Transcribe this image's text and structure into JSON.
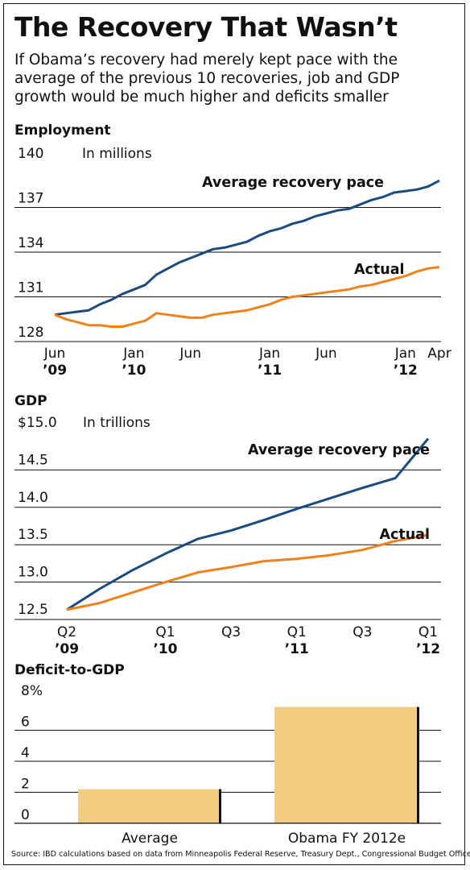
{
  "title": "The Recovery That Wasn’t",
  "subtitle": "If Obama’s recovery had merely kept pace with the average of the previous 10 recoveries, job and GDP growth would be much higher and deficits smaller",
  "source": "Source: IBD calculations based on data from Minneapolis Federal Reserve, Treasury Dept., Congressional Budget Office",
  "colors": {
    "average": "#1b4a7e",
    "actual": "#f0821e",
    "bar": "#f2cc80",
    "gridline": "#111111"
  },
  "chart_data": [
    {
      "type": "line",
      "title": "Employment",
      "unit_label": "In millions",
      "y_ticks": [
        "140",
        "137",
        "134",
        "131",
        "128"
      ],
      "ylim": [
        128,
        140
      ],
      "x_tick_labels": [
        {
          "month": "Jun",
          "year": "’09"
        },
        {
          "month": "Jan",
          "year": "’10"
        },
        {
          "month": "Jun",
          "year": ""
        },
        {
          "month": "Jan",
          "year": "’11"
        },
        {
          "month": "Jun",
          "year": ""
        },
        {
          "month": "Jan",
          "year": "’12"
        },
        {
          "month": "Apr",
          "year": ""
        }
      ],
      "x_start": "2009-06",
      "series": [
        {
          "name": "Average recovery pace",
          "x": [
            "2009-06",
            "2009-07",
            "2009-08",
            "2009-09",
            "2009-10",
            "2009-11",
            "2009-12",
            "2010-01",
            "2010-02",
            "2010-03",
            "2010-04",
            "2010-05",
            "2010-06",
            "2010-07",
            "2010-08",
            "2010-09",
            "2010-10",
            "2010-11",
            "2010-12",
            "2011-01",
            "2011-02",
            "2011-03",
            "2011-04",
            "2011-05",
            "2011-06",
            "2011-07",
            "2011-08",
            "2011-09",
            "2011-10",
            "2011-11",
            "2011-12",
            "2012-01",
            "2012-02",
            "2012-03",
            "2012-04"
          ],
          "values": [
            129.8,
            129.9,
            130.0,
            130.1,
            130.5,
            130.8,
            131.2,
            131.5,
            131.8,
            132.5,
            132.9,
            133.3,
            133.6,
            133.9,
            134.2,
            134.3,
            134.5,
            134.7,
            135.1,
            135.4,
            135.6,
            135.9,
            136.1,
            136.4,
            136.6,
            136.8,
            136.9,
            137.2,
            137.5,
            137.7,
            138.0,
            138.1,
            138.2,
            138.4,
            138.8
          ]
        },
        {
          "name": "Actual",
          "x": [
            "2009-06",
            "2009-07",
            "2009-08",
            "2009-09",
            "2009-10",
            "2009-11",
            "2009-12",
            "2010-01",
            "2010-02",
            "2010-03",
            "2010-04",
            "2010-05",
            "2010-06",
            "2010-07",
            "2010-08",
            "2010-09",
            "2010-10",
            "2010-11",
            "2010-12",
            "2011-01",
            "2011-02",
            "2011-03",
            "2011-04",
            "2011-05",
            "2011-06",
            "2011-07",
            "2011-08",
            "2011-09",
            "2011-10",
            "2011-11",
            "2011-12",
            "2012-01",
            "2012-02",
            "2012-03",
            "2012-04"
          ],
          "values": [
            129.8,
            129.5,
            129.3,
            129.1,
            129.1,
            129.0,
            129.0,
            129.2,
            129.4,
            129.9,
            129.8,
            129.7,
            129.6,
            129.6,
            129.8,
            129.9,
            130.0,
            130.1,
            130.3,
            130.5,
            130.8,
            131.0,
            131.1,
            131.2,
            131.3,
            131.4,
            131.5,
            131.7,
            131.8,
            132.0,
            132.2,
            132.4,
            132.7,
            132.9,
            133.0
          ]
        }
      ]
    },
    {
      "type": "line",
      "title": "GDP",
      "unit_label": "In trillions",
      "y_ticks": [
        "$15.0",
        "14.5",
        "14.0",
        "13.5",
        "13.0",
        "12.5"
      ],
      "ylim": [
        12.5,
        15.0
      ],
      "x_tick_labels": [
        {
          "quarter": "Q2",
          "year": "’09"
        },
        {
          "quarter": "Q1",
          "year": "’10"
        },
        {
          "quarter": "Q3",
          "year": ""
        },
        {
          "quarter": "Q1",
          "year": "’11"
        },
        {
          "quarter": "Q3",
          "year": ""
        },
        {
          "quarter": "Q1",
          "year": "’12"
        }
      ],
      "x": [
        "2009Q2",
        "2009Q3",
        "2009Q4",
        "2010Q1",
        "2010Q2",
        "2010Q3",
        "2010Q4",
        "2011Q1",
        "2011Q2",
        "2011Q3",
        "2011Q4",
        "2012Q1"
      ],
      "series": [
        {
          "name": "Average recovery pace",
          "values": [
            12.63,
            12.91,
            13.16,
            13.38,
            13.58,
            13.69,
            13.83,
            13.98,
            14.12,
            14.26,
            14.39,
            14.92
          ]
        },
        {
          "name": "Actual",
          "values": [
            12.63,
            12.72,
            12.86,
            13.0,
            13.13,
            13.2,
            13.28,
            13.31,
            13.36,
            13.43,
            13.55,
            13.63
          ]
        }
      ]
    },
    {
      "type": "bar",
      "title": "Deficit-to-GDP",
      "y_ticks": [
        "8%",
        "6",
        "4",
        "2",
        "0"
      ],
      "ylim": [
        0,
        8
      ],
      "categories": [
        "Average",
        "Obama FY 2012e"
      ],
      "values": [
        2.2,
        7.5
      ]
    }
  ]
}
